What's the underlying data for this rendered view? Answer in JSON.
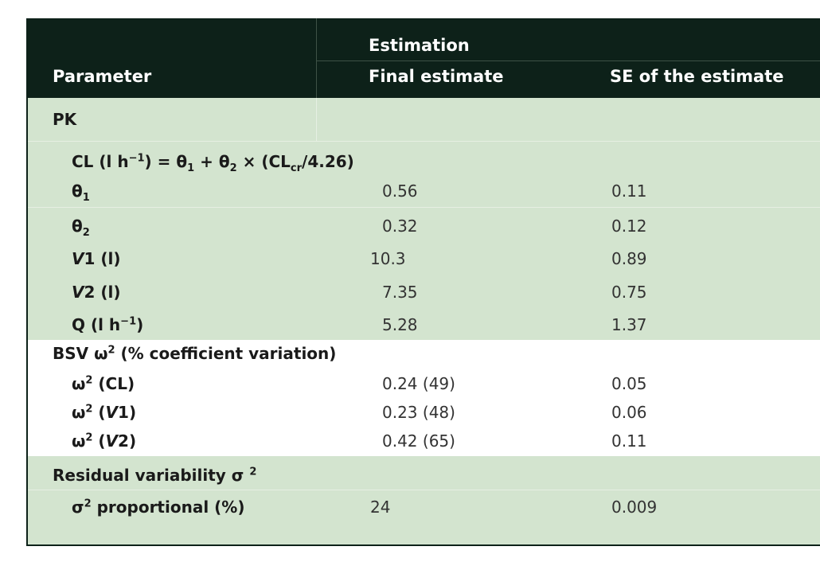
{
  "header": {
    "parameter": "Parameter",
    "estimation": "Estimation",
    "final_estimate": "Final estimate",
    "se": "SE of the estimate"
  },
  "rows": [
    {
      "label": [
        {
          "t": "PK"
        }
      ],
      "final": "",
      "se": ""
    },
    {
      "label": [
        {
          "t": "CL (l h"
        },
        {
          "t": "−1",
          "s": "sup"
        },
        {
          "t": ") = θ"
        },
        {
          "t": "1",
          "s": "sub"
        },
        {
          "t": " + θ"
        },
        {
          "t": "2",
          "s": "sub"
        },
        {
          "t": " × (CL"
        },
        {
          "t": "cr",
          "s": "sub"
        },
        {
          "t": "/4.26)"
        }
      ],
      "final": "",
      "se": ""
    },
    {
      "label": [
        {
          "t": "θ"
        },
        {
          "t": "1",
          "s": "sub"
        }
      ],
      "final": "0.56",
      "se": "0.11"
    },
    {
      "label": [
        {
          "t": "θ"
        },
        {
          "t": "2",
          "s": "sub"
        }
      ],
      "final": "0.32",
      "se": "0.12"
    },
    {
      "label": [
        {
          "t": "V",
          "s": "it"
        },
        {
          "t": "1 (l)"
        }
      ],
      "final": "10.3",
      "se": "0.89"
    },
    {
      "label": [
        {
          "t": "V",
          "s": "it"
        },
        {
          "t": "2 (l)"
        }
      ],
      "final": "7.35",
      "se": "0.75"
    },
    {
      "label": [
        {
          "t": "Q (l h"
        },
        {
          "t": "−1",
          "s": "sup"
        },
        {
          "t": ")"
        }
      ],
      "final": "5.28",
      "se": "1.37"
    },
    {
      "label": [
        {
          "t": "BSV ω"
        },
        {
          "t": "2",
          "s": "sup"
        },
        {
          "t": " (% coefficient variation)"
        }
      ],
      "final": "",
      "se": ""
    },
    {
      "label": [
        {
          "t": "ω"
        },
        {
          "t": "2",
          "s": "sup"
        },
        {
          "t": " (CL)"
        }
      ],
      "final": "0.24 (49)",
      "se": "0.05"
    },
    {
      "label": [
        {
          "t": "ω"
        },
        {
          "t": "2",
          "s": "sup"
        },
        {
          "t": " ("
        },
        {
          "t": "V",
          "s": "it"
        },
        {
          "t": "1)"
        }
      ],
      "final": "0.23 (48)",
      "se": "0.06"
    },
    {
      "label": [
        {
          "t": "ω"
        },
        {
          "t": "2",
          "s": "sup"
        },
        {
          "t": " ("
        },
        {
          "t": "V",
          "s": "it"
        },
        {
          "t": "2)"
        }
      ],
      "final": "0.42 (65)",
      "se": "0.11"
    },
    {
      "label": [
        {
          "t": "Residual variability σ "
        },
        {
          "t": "2",
          "s": "sup"
        }
      ],
      "final": "",
      "se": ""
    },
    {
      "label": [
        {
          "t": "σ"
        },
        {
          "t": "2",
          "s": "sup"
        },
        {
          "t": " proportional (%)"
        }
      ],
      "final": "24",
      "se": "0.009"
    }
  ]
}
